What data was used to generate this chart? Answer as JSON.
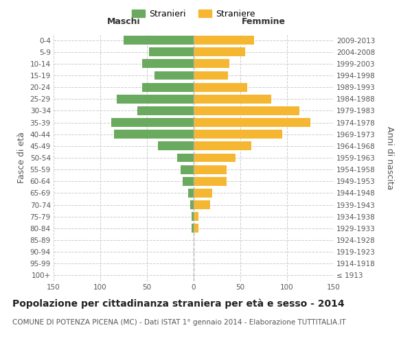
{
  "age_groups": [
    "100+",
    "95-99",
    "90-94",
    "85-89",
    "80-84",
    "75-79",
    "70-74",
    "65-69",
    "60-64",
    "55-59",
    "50-54",
    "45-49",
    "40-44",
    "35-39",
    "30-34",
    "25-29",
    "20-24",
    "15-19",
    "10-14",
    "5-9",
    "0-4"
  ],
  "birth_years": [
    "≤ 1913",
    "1914-1918",
    "1919-1923",
    "1924-1928",
    "1929-1933",
    "1934-1938",
    "1939-1943",
    "1944-1948",
    "1949-1953",
    "1954-1958",
    "1959-1963",
    "1964-1968",
    "1969-1973",
    "1974-1978",
    "1979-1983",
    "1984-1988",
    "1989-1993",
    "1994-1998",
    "1999-2003",
    "2004-2008",
    "2009-2013"
  ],
  "maschi": [
    0,
    0,
    0,
    0,
    2,
    2,
    4,
    6,
    12,
    14,
    18,
    38,
    85,
    88,
    60,
    82,
    55,
    42,
    55,
    48,
    75
  ],
  "femmine": [
    0,
    0,
    0,
    0,
    5,
    5,
    18,
    20,
    35,
    35,
    45,
    62,
    95,
    125,
    113,
    83,
    57,
    37,
    38,
    55,
    65
  ],
  "male_color": "#6aaa5e",
  "female_color": "#f5b731",
  "title": "Popolazione per cittadinanza straniera per età e sesso - 2014",
  "subtitle": "COMUNE DI POTENZA PICENA (MC) - Dati ISTAT 1° gennaio 2014 - Elaborazione TUTTITALIA.IT",
  "ylabel_left": "Fasce di età",
  "ylabel_right": "Anni di nascita",
  "xlabel_left": "Maschi",
  "xlabel_right": "Femmine",
  "legend_male": "Stranieri",
  "legend_female": "Straniere",
  "xlim": 150,
  "background_color": "#ffffff",
  "grid_color": "#cccccc",
  "title_fontsize": 10,
  "subtitle_fontsize": 7.5,
  "tick_fontsize": 7.5,
  "label_fontsize": 9
}
